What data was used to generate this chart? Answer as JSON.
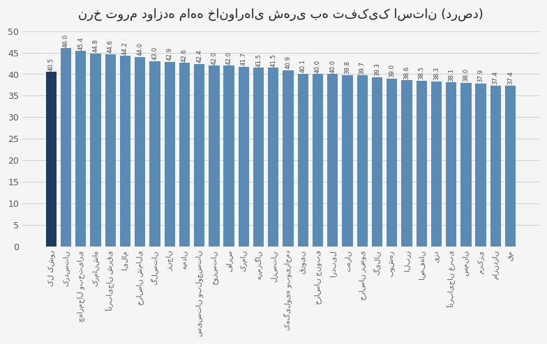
{
  "title": "نرخ تورم دوازده ماهه خانوارهای شهری به تفکیک استان (درصد)",
  "categories": [
    "کل کشور",
    "کردستان",
    "چهارمحال وبختیاری",
    "کرمانشاه",
    "آذربایجان شرقی",
    "ایلام",
    "خراسان شمالی",
    "گلستان",
    "زنجان",
    "همدان",
    "سیستان وبلوچستان",
    "خوزستان",
    "فارس",
    "کرمان",
    "هرمزگان",
    "لرستان",
    "کهگیلویه وبویراحمد",
    "قزوین",
    "خراسان جنوبی",
    "اردبیل",
    "تهران",
    "خراسان رضوی",
    "گیلان",
    "بوشهر",
    "البرز",
    "اصفهان",
    "یزد",
    "آذربایجان غربی",
    "سمنان",
    "مرکزی",
    "مازندران",
    "قم"
  ],
  "values": [
    40.5,
    46.0,
    45.4,
    44.8,
    44.6,
    44.2,
    44.0,
    43.0,
    42.9,
    42.6,
    42.4,
    42.0,
    42.0,
    41.7,
    41.5,
    41.5,
    40.9,
    40.1,
    40.0,
    40.0,
    39.8,
    39.7,
    39.3,
    39.0,
    38.6,
    38.5,
    38.3,
    38.1,
    38.0,
    37.9,
    37.4,
    37.4
  ],
  "dark_color": "#1e3a5f",
  "light_color": "#5b8ab5",
  "background_color": "#f5f5f5",
  "ylim": [
    0,
    50
  ],
  "yticks": [
    0,
    5,
    10,
    15,
    20,
    25,
    30,
    35,
    40,
    45,
    50
  ],
  "title_fontsize": 13,
  "label_fontsize": 7.5,
  "value_fontsize": 6.2
}
